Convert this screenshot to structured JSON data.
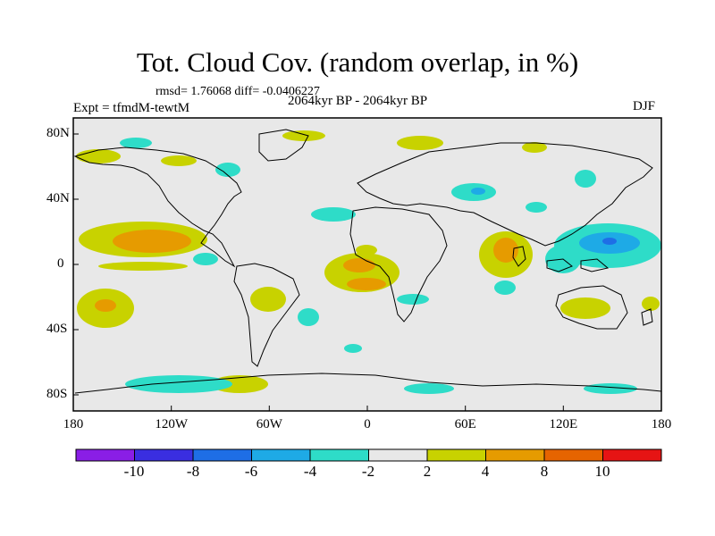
{
  "title": "Tot. Cloud Cov. (random overlap, in %)",
  "stats": "rmsd= 1.76068 diff= -0.0406227",
  "experiment": "Expt = tfmdM-tewtM",
  "period": "2064kyr BP - 2064kyr BP",
  "season": "DJF",
  "lat_ticks": [
    "80N",
    "40N",
    "0",
    "40S",
    "80S"
  ],
  "lon_ticks": [
    "180",
    "120W",
    "60W",
    "0",
    "60E",
    "120E",
    "180"
  ],
  "colorbar": {
    "labels": [
      "-10",
      "-8",
      "-6",
      "-4",
      "-2",
      "2",
      "4",
      "8",
      "10"
    ],
    "colors": [
      "#8a1ee6",
      "#3a2ee0",
      "#1e6ee6",
      "#1eaae6",
      "#2edcc8",
      "#e8e8e8",
      "#c8d200",
      "#e69b00",
      "#e66400",
      "#e61414"
    ]
  },
  "map_colors": {
    "background": "#e8e8e8",
    "neg_2_4": "#2edcc8",
    "neg_4_6": "#1eaae6",
    "neg_6_8": "#1e6ee6",
    "pos_2_4": "#c8d200",
    "pos_4_8": "#e69b00",
    "pos_8_10": "#e66400"
  }
}
